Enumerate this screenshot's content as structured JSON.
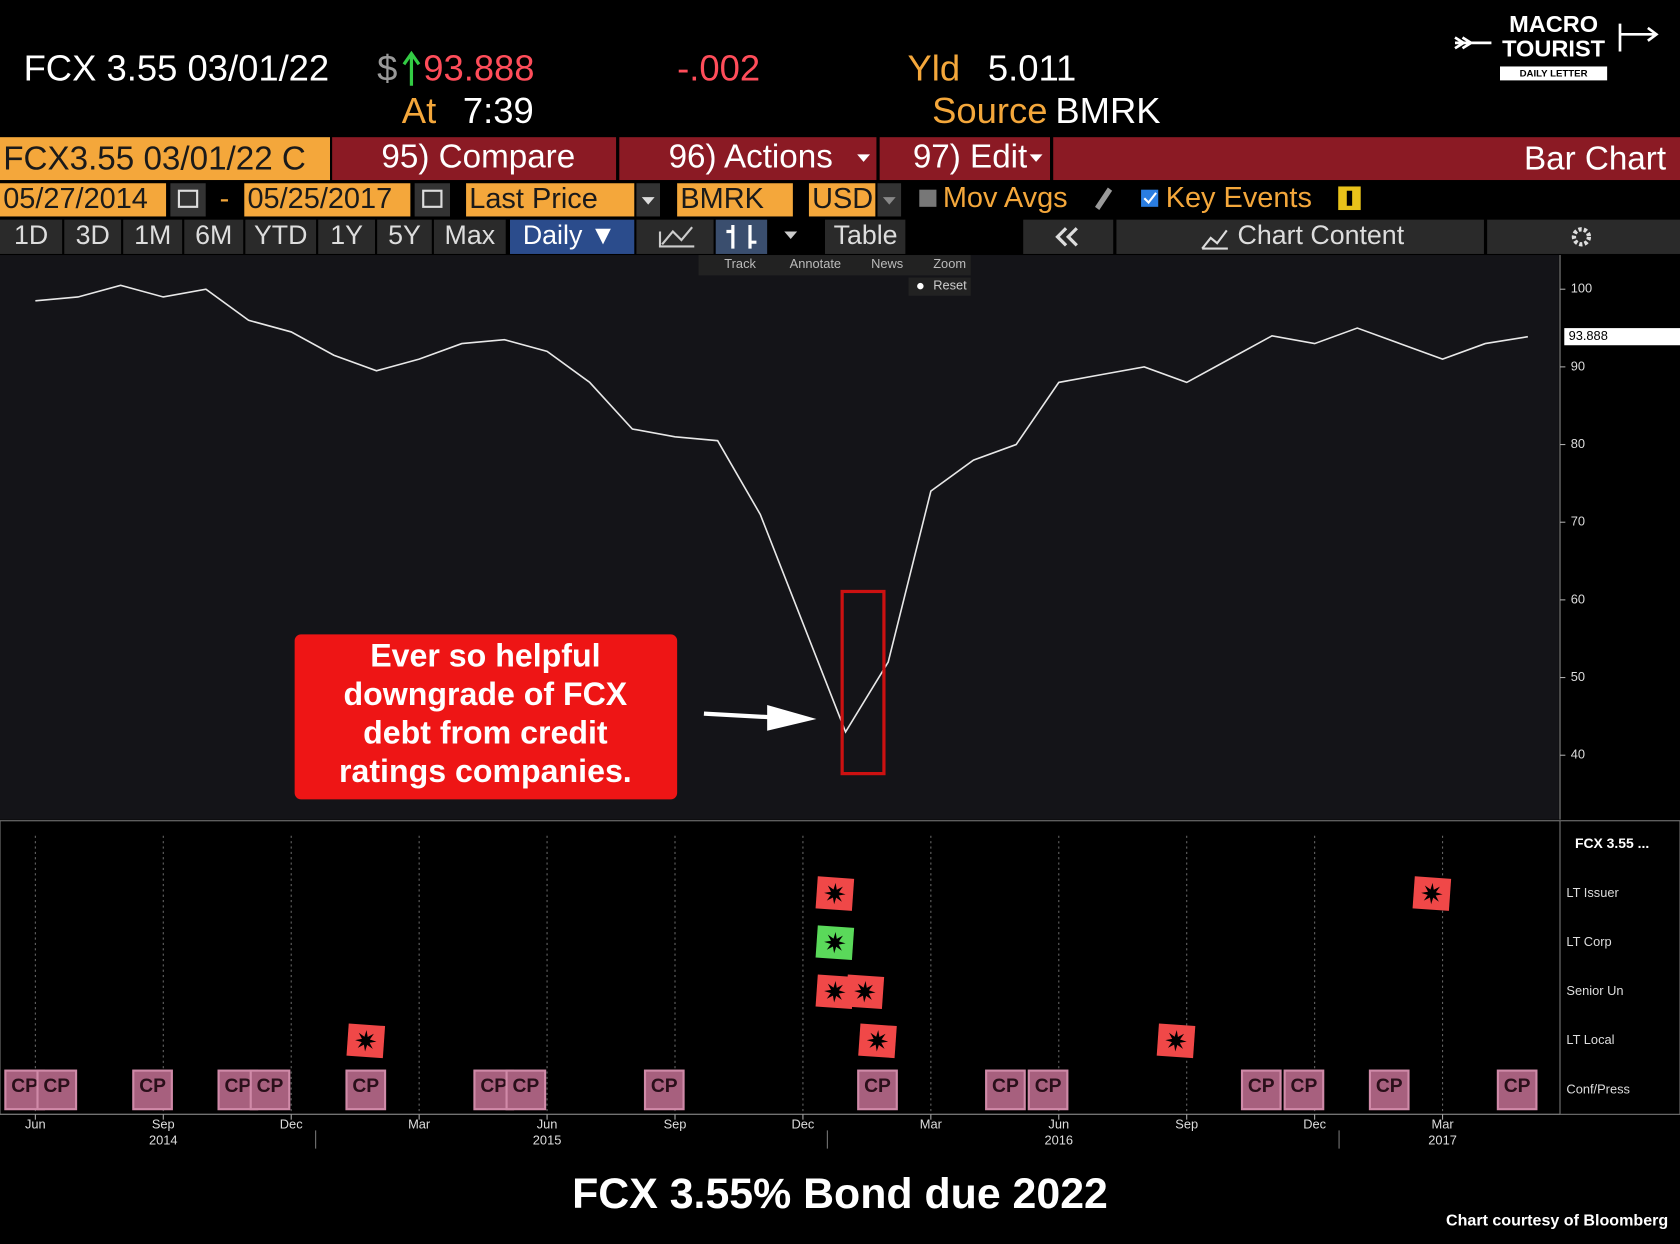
{
  "header": {
    "security": "FCX 3.55 03/01/22",
    "currency": "$",
    "price": "93.888",
    "change": "-.002",
    "yield_label": "Yld",
    "yield": "5.011",
    "time_label": "At",
    "time": "7:39",
    "source_label": "Source",
    "source": "BMRK"
  },
  "logo": {
    "line1": "MACRO",
    "line2": "TOURIST",
    "line3": "DAILY LETTER"
  },
  "toolbar": {
    "ticker": "FCX3.55 03/01/22 C",
    "compare": "95) Compare",
    "actions": "96) Actions",
    "edit": "97) Edit",
    "chart_kind": "Bar Chart",
    "start_date": "05/27/2014",
    "date_separator": "-",
    "end_date": "05/25/2017",
    "field": "Last Price",
    "pricing_source": "BMRK",
    "currency": "USD",
    "mov_avgs": "Mov Avgs",
    "key_events": "Key Events",
    "ranges": [
      "1D",
      "3D",
      "1M",
      "6M",
      "YTD",
      "1Y",
      "5Y",
      "Max"
    ],
    "frequency": "Daily ▼",
    "table": "Table",
    "chart_content": "Chart Content",
    "tools": [
      "Track",
      "Annotate",
      "News",
      "Zoom"
    ],
    "reset": "Reset"
  },
  "chart_data": {
    "type": "line",
    "color": "#e8e8e8",
    "x": [
      "2014-06",
      "2014-07",
      "2014-08",
      "2014-09",
      "2014-10",
      "2014-11",
      "2014-12",
      "2015-01",
      "2015-02",
      "2015-03",
      "2015-04",
      "2015-05",
      "2015-06",
      "2015-07",
      "2015-08",
      "2015-09",
      "2015-10",
      "2015-11",
      "2015-12",
      "2016-01",
      "2016-02",
      "2016-03",
      "2016-04",
      "2016-05",
      "2016-06",
      "2016-07",
      "2016-08",
      "2016-09",
      "2016-10",
      "2016-11",
      "2016-12",
      "2017-01",
      "2017-02",
      "2017-03",
      "2017-04",
      "2017-05"
    ],
    "values": [
      98.5,
      99,
      100.5,
      99,
      100,
      96,
      94.5,
      91.5,
      89.5,
      91,
      93,
      93.5,
      92,
      88,
      82,
      81,
      80.5,
      71,
      57,
      43,
      52,
      74,
      78,
      80,
      88,
      89,
      90,
      88,
      91,
      94,
      93,
      95,
      93,
      91,
      93,
      93.888
    ],
    "ylim": [
      31.7,
      104.4
    ],
    "yticks": [
      40,
      50,
      60,
      70,
      80,
      90,
      100
    ],
    "grid": false,
    "xticks": [
      {
        "value": "2014-06",
        "label": "Jun"
      },
      {
        "value": "2014-09",
        "label": "Sep"
      },
      {
        "value": "2014-12",
        "label": "Dec"
      },
      {
        "value": "2015-03",
        "label": "Mar"
      },
      {
        "value": "2015-06",
        "label": "Jun"
      },
      {
        "value": "2015-09",
        "label": "Sep"
      },
      {
        "value": "2015-12",
        "label": "Dec"
      },
      {
        "value": "2016-03",
        "label": "Mar"
      },
      {
        "value": "2016-06",
        "label": "Jun"
      },
      {
        "value": "2016-09",
        "label": "Sep"
      },
      {
        "value": "2016-12",
        "label": "Dec"
      },
      {
        "value": "2017-03",
        "label": "Mar"
      }
    ],
    "xyears": [
      {
        "value": "2014-09",
        "label": "2014"
      },
      {
        "value": "2015-06",
        "label": "2015"
      },
      {
        "value": "2016-06",
        "label": "2016"
      },
      {
        "value": "2017-03",
        "label": "2017"
      }
    ]
  },
  "annotation": {
    "lines": [
      "Ever so helpful",
      "downgrade of FCX",
      "debt from credit",
      "ratings companies."
    ]
  },
  "events": {
    "title": "FCX 3.55 ...",
    "rows": [
      "LT Issuer",
      "LT Corp",
      "Senior Un",
      "LT Local",
      "Conf/Press"
    ],
    "flags": [
      {
        "row": "LT Issuer",
        "x": "2016-01",
        "color": "#f04848"
      },
      {
        "row": "LT Issuer",
        "x": "2017-03",
        "color": "#f04848"
      },
      {
        "row": "LT Corp",
        "x": "2016-01",
        "color": "#5ad95a"
      },
      {
        "row": "Senior Un",
        "x": "2016-01",
        "color": "#f04848"
      },
      {
        "row": "Senior Un",
        "x": "2016-01",
        "color": "#f04848"
      },
      {
        "row": "LT Local",
        "x": "2015-02",
        "color": "#f04848"
      },
      {
        "row": "LT Local",
        "x": "2016-02",
        "color": "#f04848"
      },
      {
        "row": "LT Local",
        "x": "2016-09",
        "color": "#f04848"
      }
    ],
    "press": [
      {
        "x": "2014-06",
        "label": "CP"
      },
      {
        "x": "2014-06",
        "label": "CP"
      },
      {
        "x": "2014-09",
        "label": "CP"
      },
      {
        "x": "2014-11",
        "label": "CP"
      },
      {
        "x": "2014-11",
        "label": "CP"
      },
      {
        "x": "2015-02",
        "label": "CP"
      },
      {
        "x": "2015-05",
        "label": "CP"
      },
      {
        "x": "2015-05",
        "label": "CP"
      },
      {
        "x": "2015-09",
        "label": "CP"
      },
      {
        "x": "2016-02",
        "label": "CP"
      },
      {
        "x": "2016-05",
        "label": "CP"
      },
      {
        "x": "2016-06",
        "label": "CP"
      },
      {
        "x": "2016-11",
        "label": "CP"
      },
      {
        "x": "2016-12",
        "label": "CP"
      },
      {
        "x": "2017-02",
        "label": "CP"
      },
      {
        "x": "2017-05",
        "label": "CP"
      }
    ]
  },
  "footer": {
    "title": "FCX 3.55% Bond due 2022",
    "credit": "Chart courtesy of Bloomberg"
  }
}
